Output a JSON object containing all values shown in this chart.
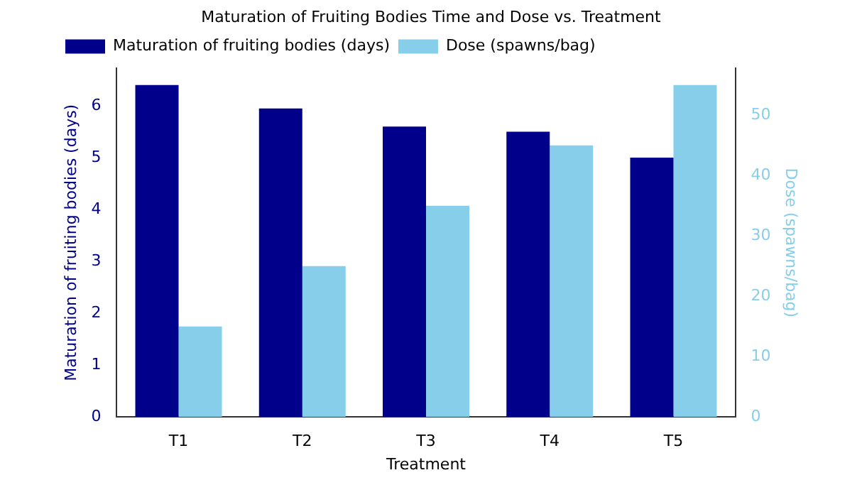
{
  "chart_data": {
    "type": "bar",
    "title": "Maturation of Fruiting Bodies Time and Dose vs. Treatment",
    "xlabel": "Treatment",
    "ylabel": "Maturation of fruiting bodies (days)",
    "y2label": "Dose (spawns/bag)",
    "categories": [
      "T1",
      "T2",
      "T3",
      "T4",
      "T5"
    ],
    "series": [
      {
        "name": "Maturation of fruiting bodies (days)",
        "color": "#00008b",
        "values": [
          6.4,
          5.95,
          5.6,
          5.5,
          5.0
        ]
      },
      {
        "name": "Dose (spawns/bag)",
        "color": "#87ceeb",
        "axis": "y2",
        "values": [
          15,
          25,
          35,
          45,
          55
        ]
      }
    ],
    "ylim": [
      0,
      6.72
    ],
    "yticks": [
      0,
      1,
      2,
      3,
      4,
      5,
      6
    ],
    "y2lim": [
      0,
      57.75
    ],
    "y2ticks": [
      0,
      10,
      20,
      30,
      40,
      50
    ],
    "grid": false,
    "legend": "top left"
  }
}
